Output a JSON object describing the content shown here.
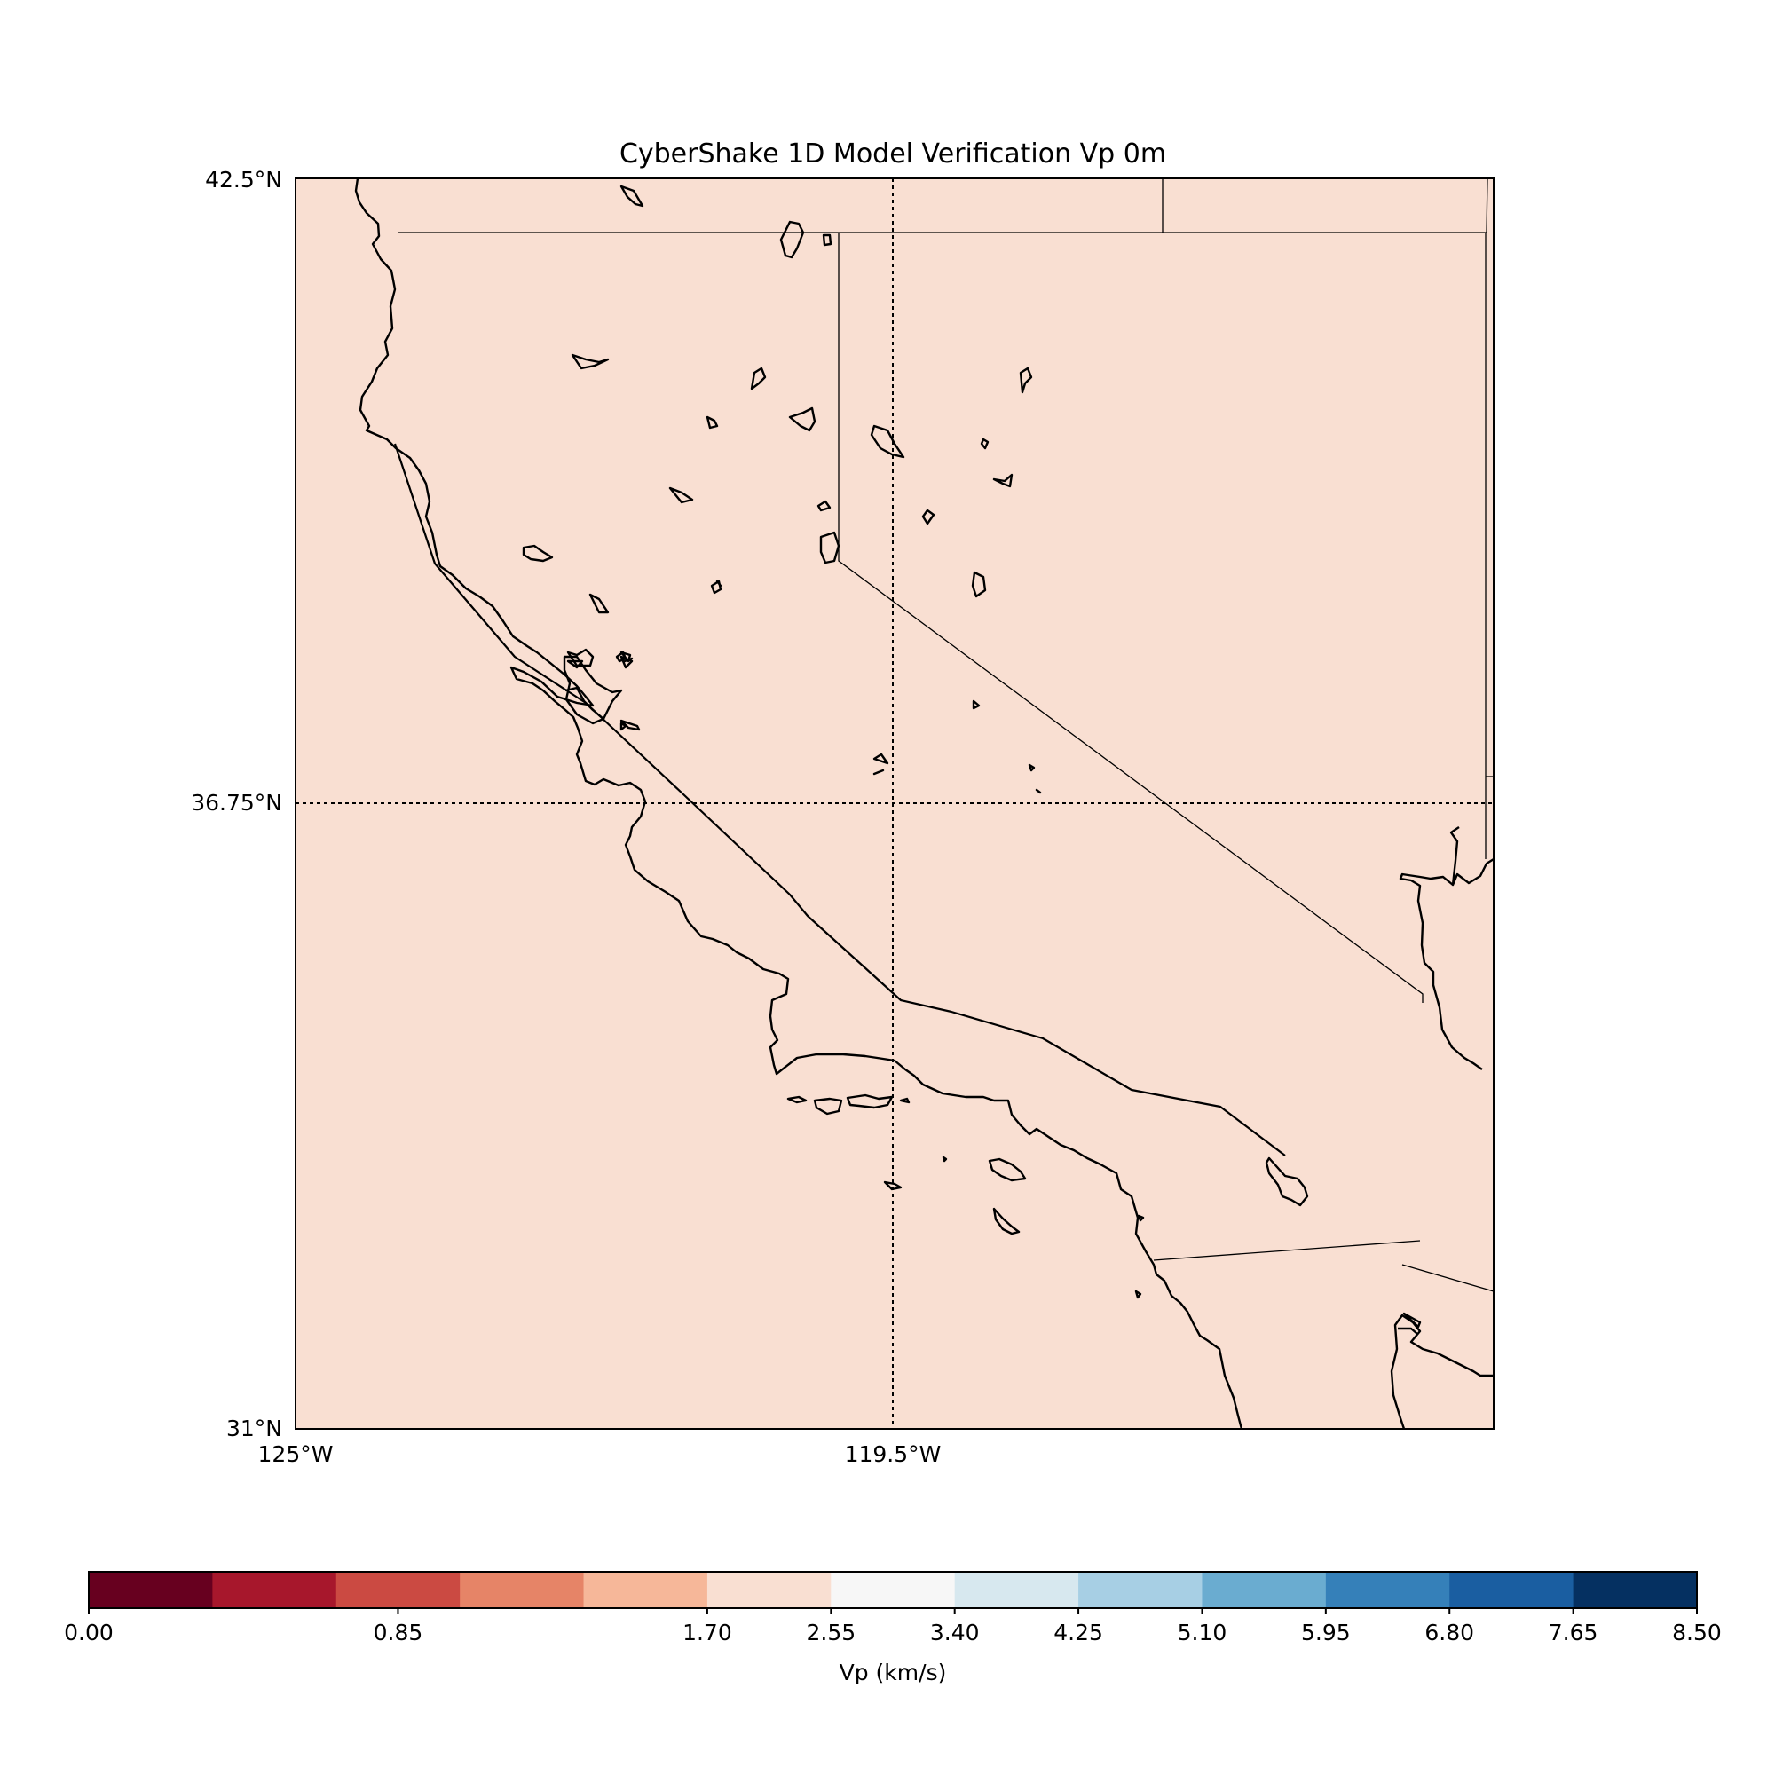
{
  "title": "CyberShake 1D Model Verification Vp 0m",
  "map": {
    "background_color": "#f9dfd2",
    "lat_range": [
      31,
      42.5
    ],
    "lon_range": [
      -125,
      -114
    ],
    "lat_labels": [
      "42.5°N",
      "36.75°N",
      "31°N"
    ],
    "lon_labels": [
      "125°W",
      "119.5°W"
    ]
  },
  "colorbar": {
    "label": "Vp (km/s)",
    "range": [
      0,
      8.5
    ],
    "boundaries": [
      0,
      0.85,
      1.7,
      2.55,
      3.4,
      4.25,
      5.1,
      5.95,
      6.8,
      7.65,
      8.5
    ],
    "tick_labels": [
      "0.00",
      "0.85",
      "1.70",
      "2.55",
      "3.40",
      "4.25",
      "5.10",
      "5.95",
      "6.80",
      "7.65",
      "8.50"
    ],
    "colors": [
      "#67001f",
      "#a7172c",
      "#cb4a42",
      "#e68467",
      "#f6b799",
      "#f9dfd2",
      "#f7f7f7",
      "#d7e8ef",
      "#a7cfe4",
      "#6aacd0",
      "#3580b9",
      "#1a5ea1",
      "#053061"
    ]
  }
}
